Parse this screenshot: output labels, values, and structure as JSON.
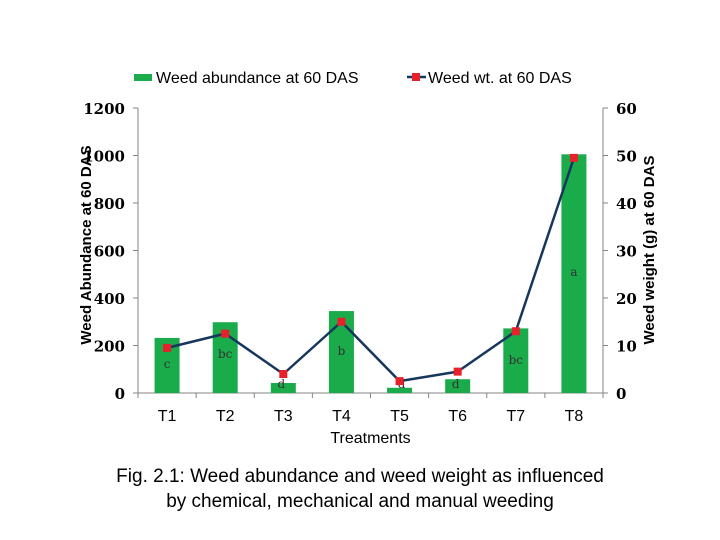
{
  "chart_data": {
    "type": "bar",
    "categories": [
      "T1",
      "T2",
      "T3",
      "T4",
      "T5",
      "T6",
      "T7",
      "T8"
    ],
    "series": [
      {
        "name": "Weed abundance at 60 DAS",
        "kind": "bar",
        "axis": "left",
        "color": "#1aab4b",
        "values": [
          232,
          298,
          42,
          345,
          22,
          58,
          272,
          1005
        ]
      },
      {
        "name": "Weed wt. at 60 DAS",
        "kind": "line",
        "axis": "right",
        "color": "#17365d",
        "marker_color": "#e8202a",
        "values": [
          9.5,
          12.5,
          4,
          15,
          2.5,
          4.5,
          13,
          49.5
        ]
      }
    ],
    "bar_labels": [
      "c",
      "bc",
      "d",
      "b",
      "d",
      "d",
      "bc",
      "a"
    ],
    "xlabel": "Treatments",
    "ylabel": "Weed Abundance at 60 DAS",
    "y2label": "Weed weight (g) at 60 DAS",
    "ylim": [
      0,
      1200
    ],
    "y2lim": [
      0,
      60
    ],
    "yticks": [
      0,
      200,
      400,
      600,
      800,
      1000,
      1200
    ],
    "y2ticks": [
      0,
      10,
      20,
      30,
      40,
      50,
      60
    ],
    "legend_position": "top",
    "grid": false
  },
  "caption": {
    "line1": "Fig. 2.1: Weed abundance and weed weight as influenced",
    "line2": "by chemical, mechanical and manual weeding"
  }
}
